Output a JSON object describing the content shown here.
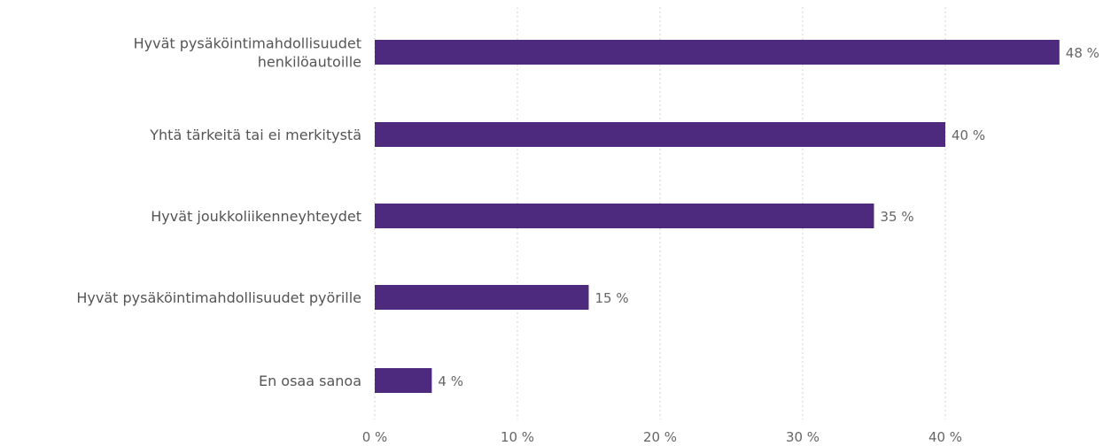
{
  "chart_data": {
    "type": "bar",
    "orientation": "horizontal",
    "categories": [
      [
        "Hyvät pysäköintimahdollisuudet",
        "henkilöautoille"
      ],
      [
        "Yhtä tärkeitä tai ei merkitystä"
      ],
      [
        "Hyvät joukkoliikenneyhteydet"
      ],
      [
        "Hyvät pysäköintimahdollisuudet pyörille"
      ],
      [
        "En osaa sanoa"
      ]
    ],
    "values": [
      48,
      40,
      35,
      15,
      4
    ],
    "value_labels": [
      "48 %",
      "40 %",
      "35 %",
      "15 %",
      "4 %"
    ],
    "xticks": [
      0,
      10,
      20,
      30,
      40
    ],
    "xtick_labels": [
      "0 %",
      "10 %",
      "20 %",
      "30 %",
      "40 %"
    ],
    "xlim": [
      0,
      50
    ],
    "grid": "vertical dotted",
    "bar_color": "#4e2a7e",
    "title": "",
    "xlabel": "",
    "ylabel": ""
  }
}
